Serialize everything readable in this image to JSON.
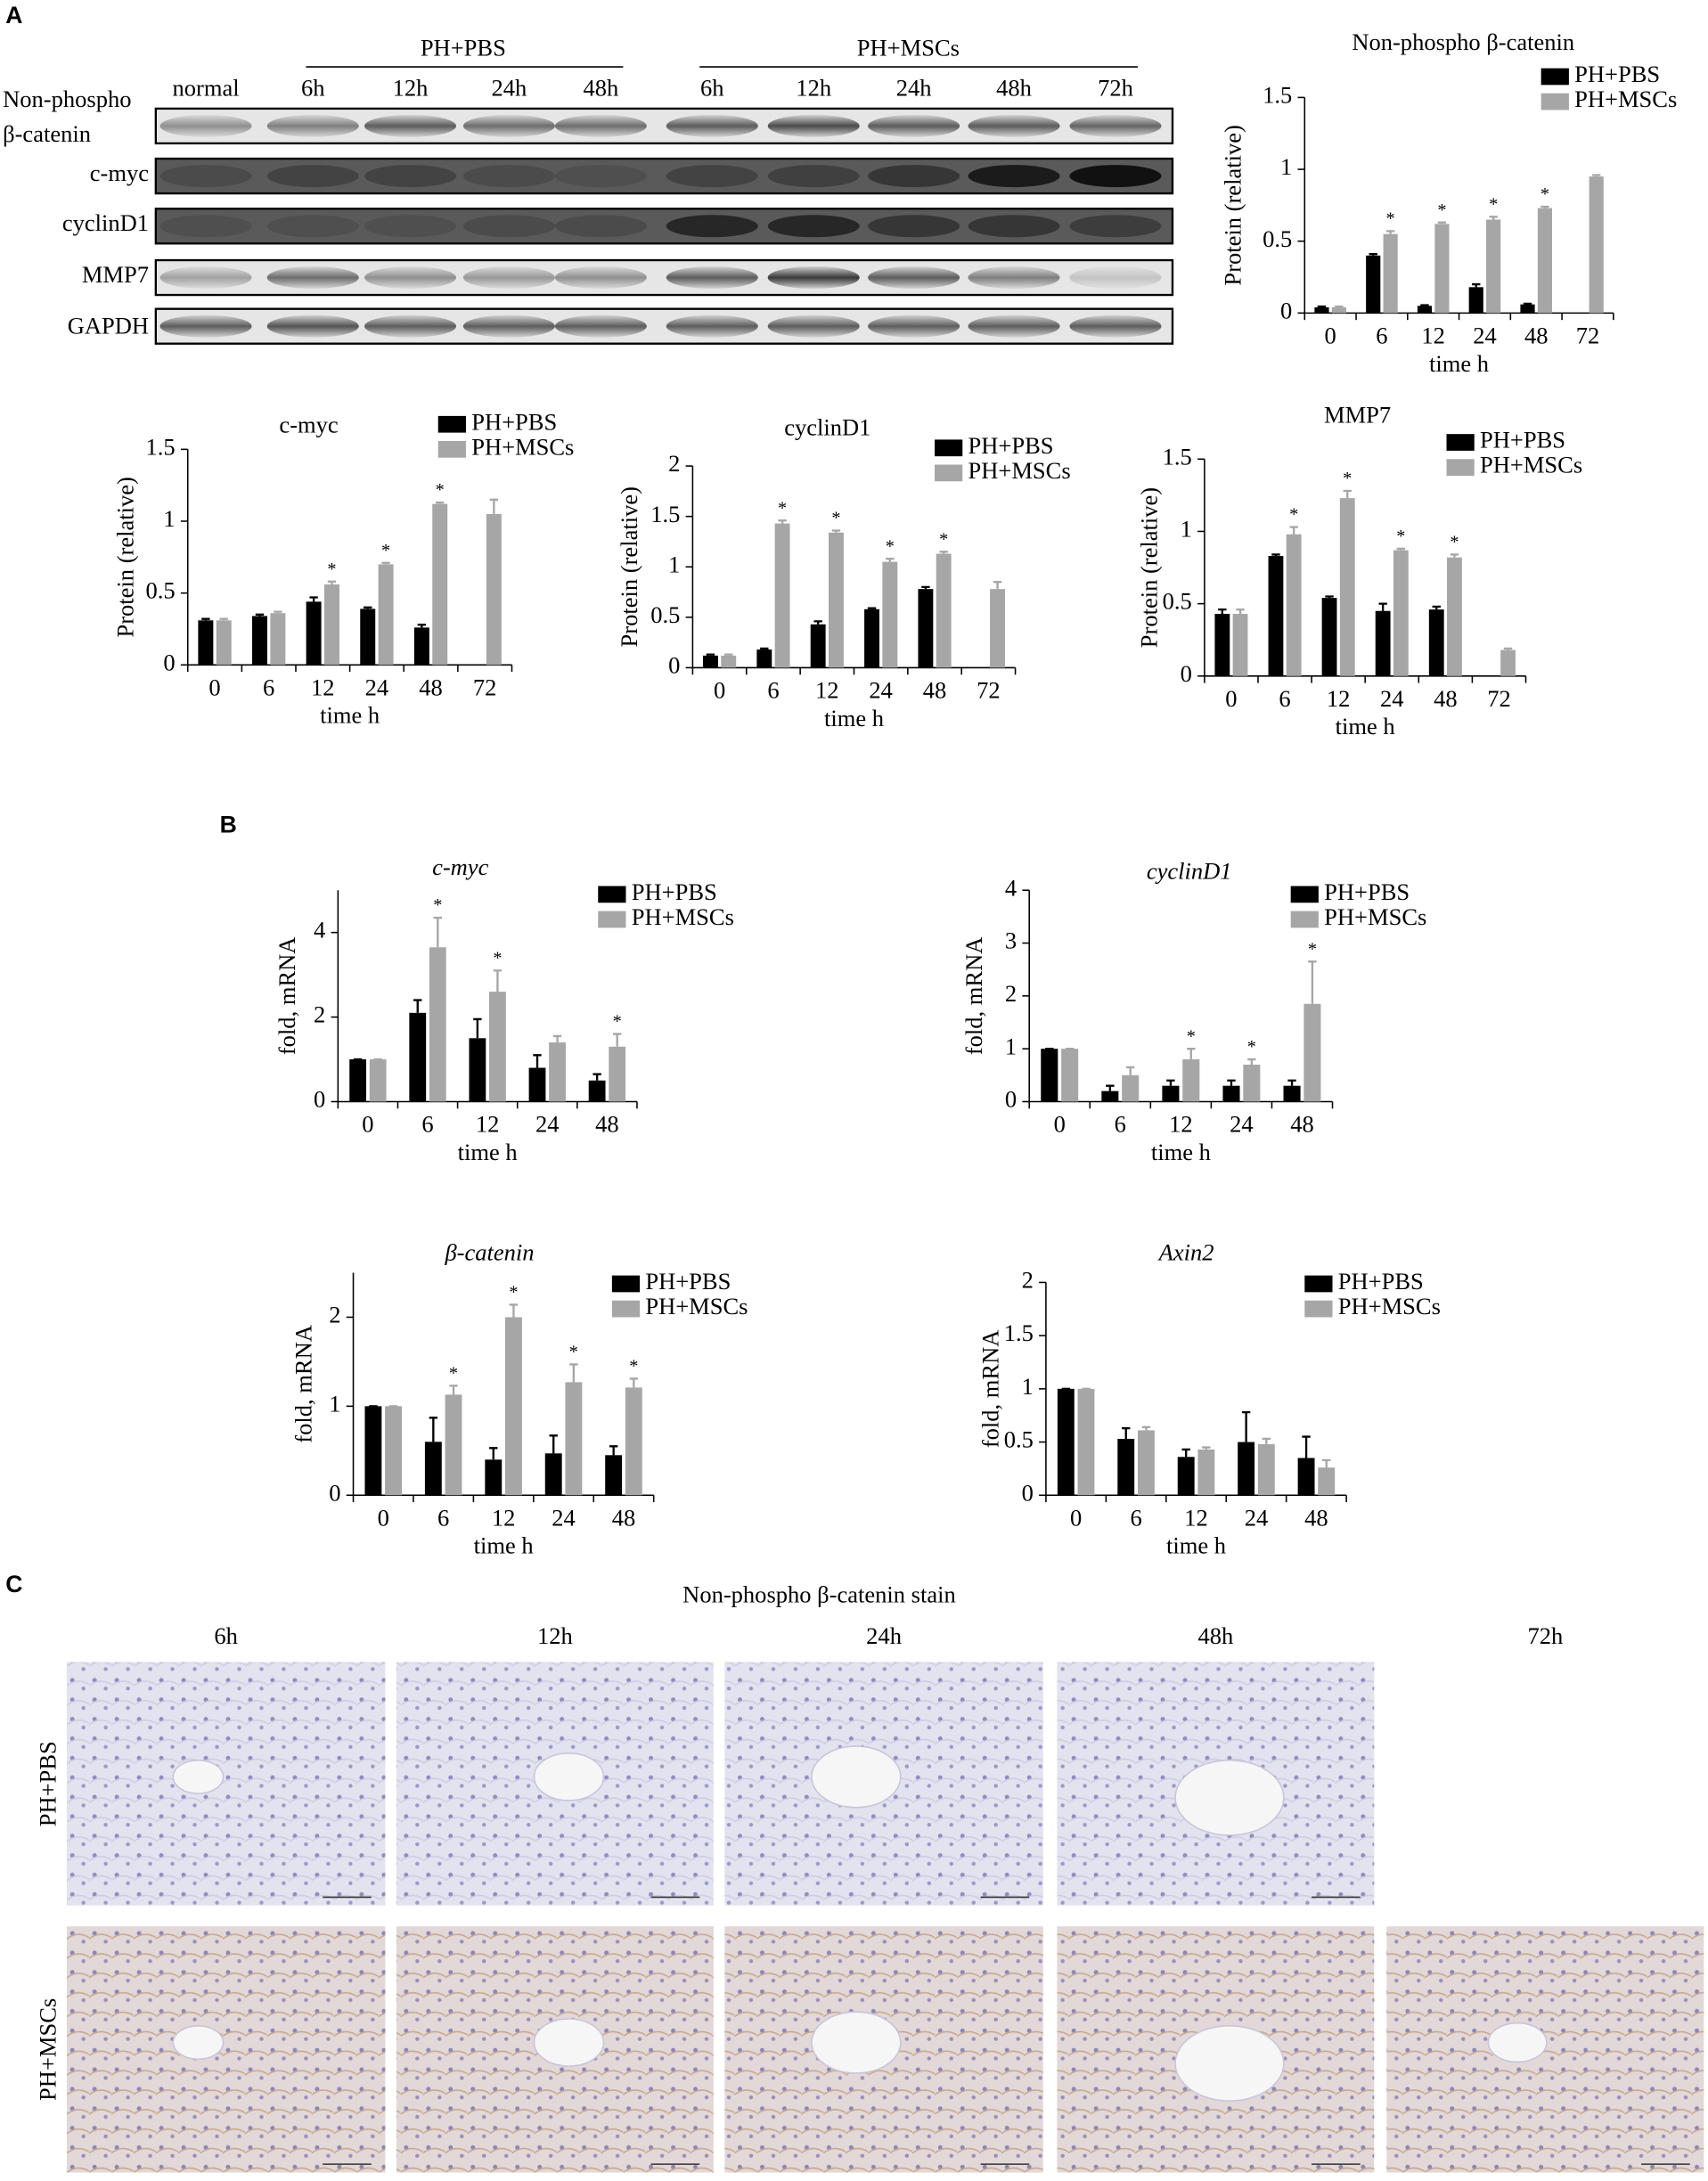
{
  "chart_data": [
    {
      "type": "bar",
      "title": "Non-phospho β-catenin",
      "xlabel": "time h",
      "ylabel": "Protein (relative)",
      "categories": [
        "0",
        "6",
        "12",
        "24",
        "48",
        "72"
      ],
      "ylim": [
        0,
        1.5
      ],
      "yticks": [
        0,
        0.5,
        1,
        1.5
      ],
      "legend": "upper right",
      "series": [
        {
          "name": "PH+PBS",
          "color": "#000000",
          "values": [
            0.04,
            0.4,
            0.05,
            0.18,
            0.06,
            null
          ],
          "errors": [
            0.005,
            0.01,
            0.005,
            0.02,
            0.005,
            null
          ]
        },
        {
          "name": "PH+MSCs",
          "color": "#a6a6a6",
          "values": [
            0.04,
            0.55,
            0.62,
            0.65,
            0.73,
            0.95
          ],
          "errors": [
            0.005,
            0.02,
            0.01,
            0.02,
            0.01,
            0.01
          ],
          "significance": [
            null,
            "*",
            "*",
            "*",
            "*",
            null
          ]
        }
      ]
    },
    {
      "type": "bar",
      "title": "c-myc",
      "xlabel": "time h",
      "ylabel": "Protein (relative)",
      "categories": [
        "0",
        "6",
        "12",
        "24",
        "48",
        "72"
      ],
      "ylim": [
        0,
        1.5
      ],
      "yticks": [
        0,
        0.5,
        1,
        1.5
      ],
      "legend": "upper right",
      "series": [
        {
          "name": "PH+PBS",
          "color": "#000000",
          "values": [
            0.31,
            0.34,
            0.44,
            0.39,
            0.26,
            null
          ],
          "errors": [
            0.01,
            0.01,
            0.03,
            0.01,
            0.02,
            null
          ]
        },
        {
          "name": "PH+MSCs",
          "color": "#a6a6a6",
          "values": [
            0.31,
            0.36,
            0.56,
            0.7,
            1.12,
            1.05
          ],
          "errors": [
            0.01,
            0.01,
            0.02,
            0.01,
            0.01,
            0.1
          ],
          "significance": [
            null,
            null,
            "*",
            "*",
            "*",
            null
          ]
        }
      ]
    },
    {
      "type": "bar",
      "title": "cyclinD1",
      "xlabel": "time h",
      "ylabel": "Protein (relative)",
      "categories": [
        "0",
        "6",
        "12",
        "24",
        "48",
        "72"
      ],
      "ylim": [
        0,
        2
      ],
      "yticks": [
        0,
        0.5,
        1,
        1.5,
        2
      ],
      "legend": "upper right",
      "series": [
        {
          "name": "PH+PBS",
          "color": "#000000",
          "values": [
            0.12,
            0.18,
            0.43,
            0.58,
            0.78,
            null
          ],
          "errors": [
            0.01,
            0.01,
            0.03,
            0.01,
            0.02,
            null
          ]
        },
        {
          "name": "PH+MSCs",
          "color": "#a6a6a6",
          "values": [
            0.12,
            1.43,
            1.34,
            1.05,
            1.13,
            0.78
          ],
          "errors": [
            0.01,
            0.03,
            0.02,
            0.03,
            0.02,
            0.07
          ],
          "significance": [
            null,
            "*",
            "*",
            "*",
            "*",
            null
          ]
        }
      ]
    },
    {
      "type": "bar",
      "title": "MMP7",
      "xlabel": "time h",
      "ylabel": "Protein (relative)",
      "categories": [
        "0",
        "6",
        "12",
        "24",
        "48",
        "72"
      ],
      "ylim": [
        0,
        1.5
      ],
      "yticks": [
        0,
        0.5,
        1,
        1.5
      ],
      "legend": "upper right",
      "series": [
        {
          "name": "PH+PBS",
          "color": "#000000",
          "values": [
            0.43,
            0.83,
            0.54,
            0.45,
            0.46,
            null
          ],
          "errors": [
            0.03,
            0.01,
            0.01,
            0.05,
            0.02,
            null
          ]
        },
        {
          "name": "PH+MSCs",
          "color": "#a6a6a6",
          "values": [
            0.43,
            0.98,
            1.23,
            0.87,
            0.82,
            0.18
          ],
          "errors": [
            0.03,
            0.05,
            0.05,
            0.01,
            0.02,
            0.01
          ],
          "significance": [
            null,
            "*",
            "*",
            "*",
            "*",
            null
          ]
        }
      ]
    },
    {
      "type": "bar",
      "title": "c-myc",
      "title_style": "italic",
      "xlabel": "time h",
      "ylabel": "fold, mRNA",
      "categories": [
        "0",
        "6",
        "12",
        "24",
        "48"
      ],
      "ylim": [
        0,
        5
      ],
      "yticks": [
        0,
        2,
        4
      ],
      "legend": "upper right",
      "series": [
        {
          "name": "PH+PBS",
          "color": "#000000",
          "values": [
            1,
            2.1,
            1.5,
            0.8,
            0.5
          ],
          "errors": [
            0,
            0.3,
            0.45,
            0.3,
            0.15
          ]
        },
        {
          "name": "PH+MSCs",
          "color": "#a6a6a6",
          "values": [
            1,
            3.65,
            2.6,
            1.4,
            1.3
          ],
          "errors": [
            0,
            0.7,
            0.5,
            0.15,
            0.3
          ],
          "significance": [
            null,
            "*",
            "*",
            null,
            "*"
          ]
        }
      ]
    },
    {
      "type": "bar",
      "title": "cyclinD1",
      "title_style": "italic",
      "xlabel": "time h",
      "ylabel": "fold, mRNA",
      "categories": [
        "0",
        "6",
        "12",
        "24",
        "48"
      ],
      "ylim": [
        0,
        4
      ],
      "yticks": [
        0,
        1,
        2,
        3,
        4
      ],
      "legend": "upper right",
      "series": [
        {
          "name": "PH+PBS",
          "color": "#000000",
          "values": [
            1,
            0.2,
            0.3,
            0.3,
            0.3
          ],
          "errors": [
            0,
            0.1,
            0.1,
            0.1,
            0.1
          ]
        },
        {
          "name": "PH+MSCs",
          "color": "#a6a6a6",
          "values": [
            1,
            0.5,
            0.8,
            0.7,
            1.85
          ],
          "errors": [
            0,
            0.15,
            0.2,
            0.1,
            0.8
          ],
          "significance": [
            null,
            null,
            "*",
            "*",
            "*"
          ]
        }
      ]
    },
    {
      "type": "bar",
      "title": "β-catenin",
      "title_style": "italic",
      "xlabel": "time h",
      "ylabel": "fold, mRNA",
      "categories": [
        "0",
        "6",
        "12",
        "24",
        "48"
      ],
      "ylim": [
        0,
        2.5
      ],
      "yticks": [
        0,
        1,
        2
      ],
      "legend": "upper right",
      "series": [
        {
          "name": "PH+PBS",
          "color": "#000000",
          "values": [
            1,
            0.6,
            0.4,
            0.47,
            0.45
          ],
          "errors": [
            0,
            0.27,
            0.13,
            0.2,
            0.1
          ]
        },
        {
          "name": "PH+MSCs",
          "color": "#a6a6a6",
          "values": [
            1,
            1.13,
            2.0,
            1.27,
            1.21
          ],
          "errors": [
            0,
            0.1,
            0.14,
            0.2,
            0.1
          ],
          "significance": [
            null,
            "*",
            "*",
            "*",
            "*"
          ]
        }
      ]
    },
    {
      "type": "bar",
      "title": "Axin2",
      "title_style": "italic",
      "xlabel": "time h",
      "ylabel": "fold, mRNA",
      "categories": [
        "0",
        "6",
        "12",
        "24",
        "48"
      ],
      "ylim": [
        0,
        2
      ],
      "yticks": [
        0,
        0.5,
        1,
        1.5,
        2
      ],
      "legend": "upper right",
      "series": [
        {
          "name": "PH+PBS",
          "color": "#000000",
          "values": [
            1,
            0.53,
            0.36,
            0.5,
            0.35
          ],
          "errors": [
            0,
            0.1,
            0.07,
            0.28,
            0.2
          ]
        },
        {
          "name": "PH+MSCs",
          "color": "#a6a6a6",
          "values": [
            1,
            0.61,
            0.43,
            0.48,
            0.26
          ],
          "errors": [
            0,
            0.03,
            0.02,
            0.05,
            0.07
          ]
        }
      ]
    }
  ],
  "figure": {
    "panel_labels": [
      "A",
      "B",
      "C"
    ],
    "blot": {
      "groups": [
        "PH+PBS",
        "PH+MSCs"
      ],
      "lanes": [
        "normal",
        "6h",
        "12h",
        "24h",
        "48h",
        "6h",
        "12h",
        "24h",
        "48h",
        "72h"
      ],
      "rows": [
        "Non-phospho",
        "β-catenin",
        "c-myc",
        "cyclinD1",
        "MMP7",
        "GAPDH"
      ]
    },
    "stain": {
      "title": "Non-phospho β-catenin stain",
      "columns": [
        "6h",
        "12h",
        "24h",
        "48h",
        "72h"
      ],
      "rows": [
        "PH+PBS",
        "PH+MSCs"
      ]
    }
  }
}
